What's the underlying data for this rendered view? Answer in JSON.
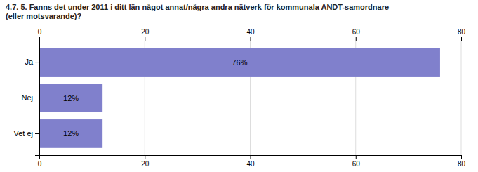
{
  "chart_data": {
    "type": "bar",
    "orientation": "horizontal",
    "title": "4.7. 5. Fanns det under 2011 i ditt län något annat/några andra nätverk för kommunala ANDT-samordnare\n(eller motsvarande)?",
    "categories": [
      "Ja",
      "Nej",
      "Vet ej"
    ],
    "values": [
      76,
      12,
      12
    ],
    "value_labels": [
      "76%",
      "12%",
      "12%"
    ],
    "data_labels": true,
    "color": "#8080cc",
    "xlim": [
      0,
      80
    ],
    "xticks": [
      0,
      20,
      40,
      60,
      80
    ],
    "grid": true
  }
}
